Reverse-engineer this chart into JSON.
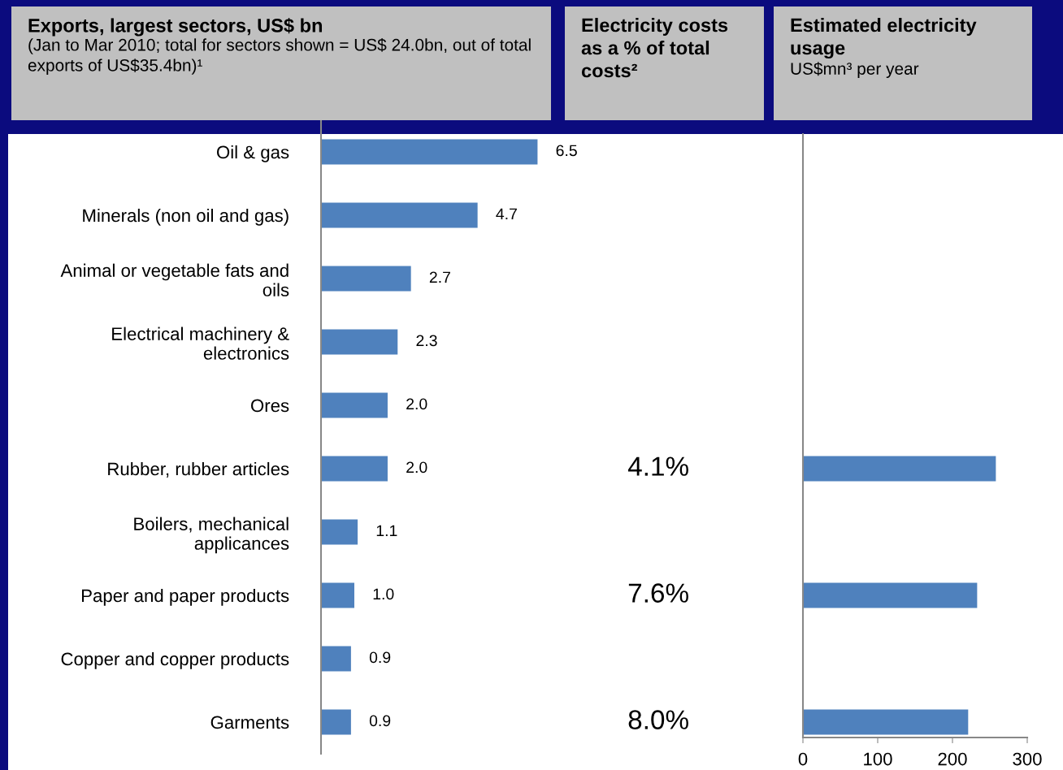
{
  "chart_data": [
    {
      "type": "bar",
      "orientation": "horizontal",
      "title": "Exports, largest sectors, US$ bn",
      "subtitle": "(Jan to Mar 2010; total for sectors shown = US$ 24.0bn, out of total\nexports of US$35.4bn)¹",
      "categories": [
        "Oil & gas",
        "Minerals (non oil and gas)",
        "Animal or vegetable fats and\noils",
        "Electrical machinery &\nelectronics",
        "Ores",
        "Rubber, rubber articles",
        "Boilers, mechanical\napplicances",
        "Paper and paper products",
        "Copper and copper products",
        "Garments"
      ],
      "values": [
        6.5,
        4.7,
        2.7,
        2.3,
        2.0,
        2.0,
        1.1,
        1.0,
        0.9,
        0.9
      ],
      "value_labels": [
        "6.5",
        "4.7",
        "2.7",
        "2.3",
        "2.0",
        "2.0",
        "1.1",
        "1.0",
        "0.9",
        "0.9"
      ],
      "color": "#4f81bd",
      "tick_labels": "y"
    },
    {
      "type": "other",
      "title": "Electricity costs\nas a % of total\ncosts²",
      "categories": [
        null,
        null,
        null,
        null,
        null,
        null,
        null,
        null,
        null,
        null
      ],
      "values": [
        null,
        null,
        null,
        null,
        null,
        4.1,
        null,
        7.6,
        null,
        8.0
      ],
      "value_labels": [
        null,
        null,
        null,
        null,
        null,
        "4.1%",
        null,
        "7.6%",
        null,
        "8.0%"
      ]
    },
    {
      "type": "bar",
      "orientation": "horizontal",
      "title": "Estimated electricity\nusage",
      "subtitle": "US$mn³ per year",
      "categories": [
        null,
        null,
        null,
        null,
        null,
        null,
        null,
        null,
        null,
        null
      ],
      "values": [
        null,
        null,
        null,
        null,
        null,
        258,
        null,
        233,
        null,
        221
      ],
      "color": "#4f81bd",
      "xlim": [
        0,
        300
      ],
      "xticks": [
        0,
        100,
        200,
        300
      ],
      "tick_labels": "x"
    }
  ]
}
